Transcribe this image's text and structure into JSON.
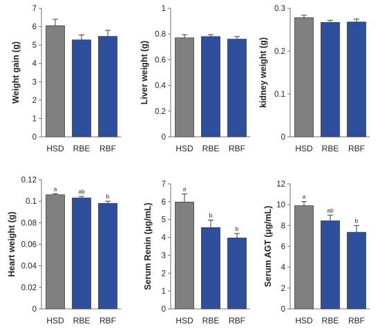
{
  "colors": {
    "HSD": "#808080",
    "RBE": "#2f4f9c",
    "RBF": "#2f4f9c",
    "axis": "#6f6f6f",
    "text": "#222222"
  },
  "chart_data": [
    {
      "type": "bar",
      "title": "",
      "ylabel": "Weight gain (g)",
      "categories": [
        "HSD",
        "RBE",
        "RBF"
      ],
      "values": [
        6.05,
        5.28,
        5.47
      ],
      "errors": [
        0.35,
        0.27,
        0.33
      ],
      "significance": [
        "",
        "",
        ""
      ],
      "ylim": [
        0,
        7
      ],
      "yticks": [
        "0",
        "1",
        "2",
        "3",
        "4",
        "5",
        "6",
        "7"
      ],
      "grid": false
    },
    {
      "type": "bar",
      "title": "",
      "ylabel": "Liver weight (g)",
      "categories": [
        "HSD",
        "RBE",
        "RBF"
      ],
      "values": [
        0.77,
        0.78,
        0.76
      ],
      "errors": [
        0.025,
        0.015,
        0.02
      ],
      "significance": [
        "",
        "",
        ""
      ],
      "ylim": [
        0,
        1
      ],
      "yticks": [
        "0",
        "0.2",
        "0.4",
        "0.6",
        "0.8",
        "1"
      ],
      "grid": false
    },
    {
      "type": "bar",
      "title": "",
      "ylabel": "kidney weight (g)",
      "categories": [
        "HSD",
        "RBE",
        "RBF"
      ],
      "values": [
        0.278,
        0.267,
        0.268
      ],
      "errors": [
        0.006,
        0.005,
        0.007
      ],
      "significance": [
        "",
        "",
        ""
      ],
      "ylim": [
        0,
        0.3
      ],
      "yticks": [
        "0",
        "0.1",
        "0.2",
        "0.3"
      ],
      "grid": false
    },
    {
      "type": "bar",
      "title": "",
      "ylabel": "Heart weight (g)",
      "categories": [
        "HSD",
        "RBE",
        "RBF"
      ],
      "values": [
        0.106,
        0.103,
        0.098
      ],
      "errors": [
        0.001,
        0.0015,
        0.002
      ],
      "significance": [
        "a",
        "ab",
        "b"
      ],
      "ylim": [
        0,
        0.12
      ],
      "yticks": [
        "0",
        "0.02",
        "0.04",
        "0.06",
        "0.08",
        "0.1",
        "0.12"
      ],
      "grid": false
    },
    {
      "type": "bar",
      "title": "",
      "ylabel": "Serum Renin (μg/mL)",
      "categories": [
        "HSD",
        "RBE",
        "RBF"
      ],
      "values": [
        5.98,
        4.55,
        3.97
      ],
      "errors": [
        0.45,
        0.42,
        0.25
      ],
      "significance": [
        "a",
        "b",
        "b"
      ],
      "ylim": [
        0,
        7
      ],
      "yticks": [
        "0",
        "1",
        "2",
        "3",
        "4",
        "5",
        "6",
        "7"
      ],
      "grid": false
    },
    {
      "type": "bar",
      "title": "",
      "ylabel": "Serum AGT (μg/mL)",
      "categories": [
        "HSD",
        "RBE",
        "RBF"
      ],
      "values": [
        9.9,
        8.45,
        7.35
      ],
      "errors": [
        0.4,
        0.55,
        0.65
      ],
      "significance": [
        "a",
        "ab",
        "b"
      ],
      "ylim": [
        0,
        12
      ],
      "yticks": [
        "0",
        "2",
        "4",
        "6",
        "8",
        "10",
        "12"
      ],
      "grid": false
    }
  ]
}
